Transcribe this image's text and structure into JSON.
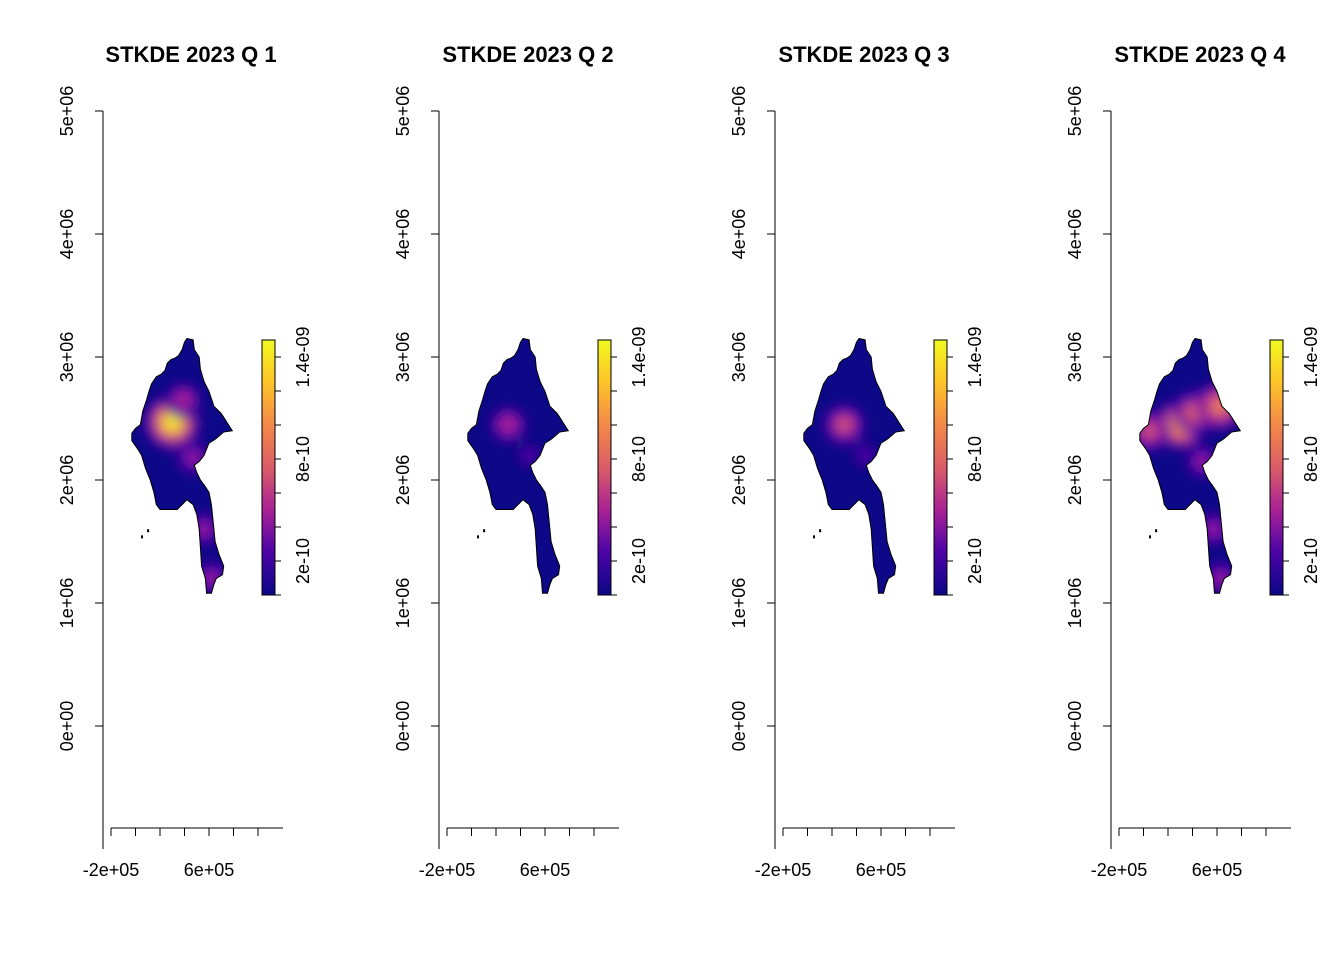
{
  "chart_data": [
    {
      "type": "heatmap",
      "title": "STKDE 2023 Q 1",
      "xlim": [
        -280000,
        1100000
      ],
      "ylim": [
        -1000000,
        5100000
      ],
      "xticks": [
        -200000,
        0,
        200000,
        400000,
        600000,
        800000,
        1000000
      ],
      "xtick_labels": [
        "-2e+05",
        "",
        "",
        "",
        "6e+05",
        "",
        ""
      ],
      "yticks": [
        0,
        1000000,
        2000000,
        3000000,
        4000000,
        5000000
      ],
      "ytick_labels": [
        "0e+00",
        "1e+06",
        "2e+06",
        "3e+06",
        "4e+06",
        "5e+06"
      ],
      "legend": {
        "min": 0,
        "max": 1.5e-09,
        "ticks": [
          0,
          2e-10,
          4e-10,
          6e-10,
          8e-10,
          1e-09,
          1.2e-09,
          1.4e-09
        ],
        "tick_labels": [
          "",
          "2e-10",
          "",
          "",
          "8e-10",
          "",
          "",
          "1.4e-09"
        ],
        "colors": [
          "#0d0887",
          "#4b03a7",
          "#a82296",
          "#db5c68",
          "#f48849",
          "#fdc328",
          "#f0f921"
        ]
      },
      "hotspots": [
        {
          "x": 300000,
          "y": 2470000,
          "value": 1.45e-09
        },
        {
          "x": 390000,
          "y": 2650000,
          "value": 5e-10
        },
        {
          "x": 470000,
          "y": 2180000,
          "value": 4e-10
        },
        {
          "x": 560000,
          "y": 1600000,
          "value": 4e-10
        },
        {
          "x": 620000,
          "y": 1200000,
          "value": 4.5e-10
        }
      ]
    },
    {
      "type": "heatmap",
      "title": "STKDE 2023 Q 2",
      "xlim": [
        -280000,
        1100000
      ],
      "ylim": [
        -1000000,
        5100000
      ],
      "xticks": [
        -200000,
        0,
        200000,
        400000,
        600000,
        800000,
        1000000
      ],
      "xtick_labels": [
        "-2e+05",
        "",
        "",
        "",
        "6e+05",
        "",
        ""
      ],
      "yticks": [
        0,
        1000000,
        2000000,
        3000000,
        4000000,
        5000000
      ],
      "ytick_labels": [
        "0e+00",
        "1e+06",
        "2e+06",
        "3e+06",
        "4e+06",
        "5e+06"
      ],
      "legend": {
        "min": 0,
        "max": 1.5e-09,
        "ticks": [
          0,
          2e-10,
          4e-10,
          6e-10,
          8e-10,
          1e-09,
          1.2e-09,
          1.4e-09
        ],
        "tick_labels": [
          "",
          "2e-10",
          "",
          "",
          "8e-10",
          "",
          "",
          "1.4e-09"
        ],
        "colors": [
          "#0d0887",
          "#4b03a7",
          "#a82296",
          "#db5c68",
          "#f48849",
          "#fdc328",
          "#f0f921"
        ]
      },
      "hotspots": [
        {
          "x": 300000,
          "y": 2450000,
          "value": 6e-10
        },
        {
          "x": 470000,
          "y": 2200000,
          "value": 2e-10
        }
      ]
    },
    {
      "type": "heatmap",
      "title": "STKDE 2023 Q 3",
      "xlim": [
        -280000,
        1100000
      ],
      "ylim": [
        -1000000,
        5100000
      ],
      "xticks": [
        -200000,
        0,
        200000,
        400000,
        600000,
        800000,
        1000000
      ],
      "xtick_labels": [
        "-2e+05",
        "",
        "",
        "",
        "6e+05",
        "",
        ""
      ],
      "yticks": [
        0,
        1000000,
        2000000,
        3000000,
        4000000,
        5000000
      ],
      "ytick_labels": [
        "0e+00",
        "1e+06",
        "2e+06",
        "3e+06",
        "4e+06",
        "5e+06"
      ],
      "legend": {
        "min": 0,
        "max": 1.5e-09,
        "ticks": [
          0,
          2e-10,
          4e-10,
          6e-10,
          8e-10,
          1e-09,
          1.2e-09,
          1.4e-09
        ],
        "tick_labels": [
          "",
          "2e-10",
          "",
          "",
          "8e-10",
          "",
          "",
          "1.4e-09"
        ],
        "colors": [
          "#0d0887",
          "#4b03a7",
          "#a82296",
          "#db5c68",
          "#f48849",
          "#fdc328",
          "#f0f921"
        ]
      },
      "hotspots": [
        {
          "x": 300000,
          "y": 2450000,
          "value": 6.5e-10
        },
        {
          "x": 470000,
          "y": 2200000,
          "value": 2e-10
        }
      ]
    },
    {
      "type": "heatmap",
      "title": "STKDE 2023 Q 4",
      "xlim": [
        -280000,
        1100000
      ],
      "ylim": [
        -1000000,
        5100000
      ],
      "xticks": [
        -200000,
        0,
        200000,
        400000,
        600000,
        800000,
        1000000
      ],
      "xtick_labels": [
        "-2e+05",
        "",
        "",
        "",
        "6e+05",
        "",
        ""
      ],
      "yticks": [
        0,
        1000000,
        2000000,
        3000000,
        4000000,
        5000000
      ],
      "ytick_labels": [
        "0e+00",
        "1e+06",
        "2e+06",
        "3e+06",
        "4e+06",
        "5e+06"
      ],
      "legend": {
        "min": 0,
        "max": 1.5e-09,
        "ticks": [
          0,
          2e-10,
          4e-10,
          6e-10,
          8e-10,
          1e-09,
          1.2e-09,
          1.4e-09
        ],
        "tick_labels": [
          "",
          "2e-10",
          "",
          "",
          "8e-10",
          "",
          "",
          "1.4e-09"
        ],
        "colors": [
          "#0d0887",
          "#4b03a7",
          "#a82296",
          "#db5c68",
          "#f48849",
          "#fdc328",
          "#f0f921"
        ]
      },
      "hotspots": [
        {
          "x": 300000,
          "y": 2450000,
          "value": 1.1e-09
        },
        {
          "x": 420000,
          "y": 2550000,
          "value": 8e-10
        },
        {
          "x": 620000,
          "y": 2600000,
          "value": 1e-09
        },
        {
          "x": 50000,
          "y": 2400000,
          "value": 7e-10
        },
        {
          "x": 480000,
          "y": 2150000,
          "value": 4e-10
        },
        {
          "x": 570000,
          "y": 1600000,
          "value": 4.5e-10
        },
        {
          "x": 630000,
          "y": 1200000,
          "value": 4e-10
        }
      ]
    }
  ]
}
